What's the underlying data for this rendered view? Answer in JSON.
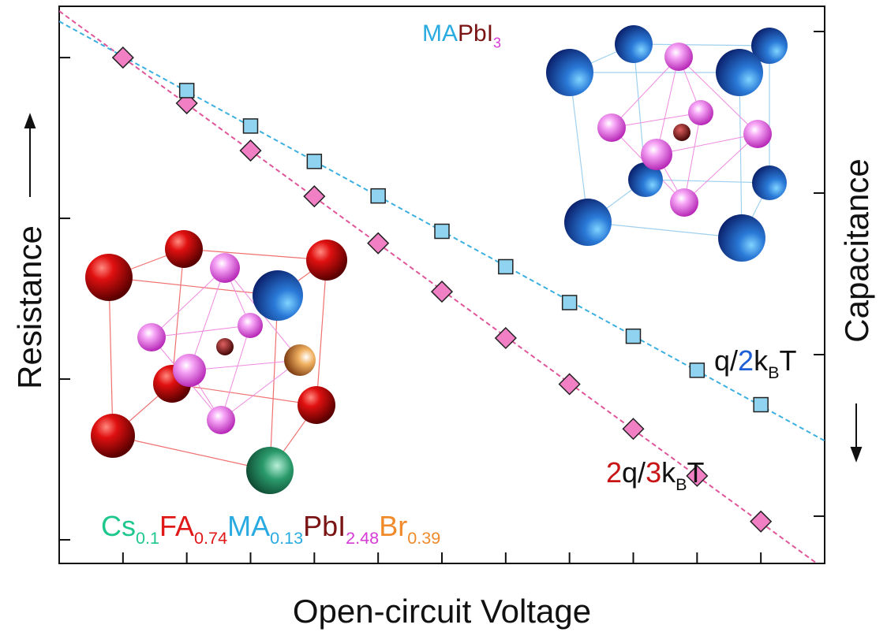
{
  "chart_data": {
    "type": "scatter",
    "xlabel": "Open-circuit Voltage",
    "ylabel": "Resistance",
    "y2label": "Capacitance",
    "xlim": [
      0,
      12
    ],
    "xticks": [
      1,
      2,
      3,
      4,
      5,
      6,
      7,
      8,
      9,
      10,
      11
    ],
    "ylog": true,
    "ylim": [
      0.713,
      2085
    ],
    "yticks": [
      1,
      10,
      100,
      1000
    ],
    "y2log": true,
    "y2lim": [
      0.51,
      1432
    ],
    "y2ticks": [
      1,
      10,
      100,
      1000
    ],
    "series": [
      {
        "name": "Resistance",
        "marker": "diamond",
        "color": "#f07fc4",
        "line_color": "#e0559a",
        "x": [
          1,
          2,
          3,
          4,
          5,
          6,
          7,
          8,
          9,
          10,
          11
        ],
        "values": [
          1000,
          520,
          264,
          137,
          70,
          35,
          18,
          9.3,
          4.9,
          2.5,
          1.3
        ]
      },
      {
        "name": "Capacitance",
        "marker": "square",
        "color": "#8fd3f0",
        "line_color": "#3bb0e0",
        "axis": "y2",
        "x": [
          2,
          3,
          4,
          5,
          6,
          7,
          8,
          9,
          10,
          11
        ],
        "values": [
          431,
          260,
          157,
          96,
          58,
          35,
          21,
          13,
          8.0,
          4.9
        ]
      }
    ],
    "annotations": [
      {
        "parts": [
          {
            "text": "MA",
            "color": "#29abe2"
          },
          {
            "text": "PbI",
            "color": "#7a1414"
          },
          {
            "text": "3",
            "color": "#d63ad6",
            "sub": true
          }
        ]
      },
      {
        "parts": [
          {
            "text": "q/",
            "color": "#111111"
          },
          {
            "text": "2",
            "color": "#1f5fd6"
          },
          {
            "text": "k",
            "color": "#111111"
          },
          {
            "text": "B",
            "color": "#111111",
            "sub": true
          },
          {
            "text": "T",
            "color": "#111111"
          }
        ]
      },
      {
        "parts": [
          {
            "text": "2",
            "color": "#c81414"
          },
          {
            "text": "q/",
            "color": "#111111"
          },
          {
            "text": "3",
            "color": "#c81414"
          },
          {
            "text": "k",
            "color": "#111111"
          },
          {
            "text": "B",
            "color": "#111111",
            "sub": true
          },
          {
            "text": "T",
            "color": "#111111"
          }
        ]
      },
      {
        "parts": [
          {
            "text": "Cs",
            "color": "#1ec88c"
          },
          {
            "text": "0.1",
            "color": "#1ec88c",
            "sub": true
          },
          {
            "text": "FA",
            "color": "#e01818"
          },
          {
            "text": "0.74",
            "color": "#e01818",
            "sub": true
          },
          {
            "text": "MA",
            "color": "#29abe2"
          },
          {
            "text": "0.13",
            "color": "#29abe2",
            "sub": true
          },
          {
            "text": "PbI",
            "color": "#7a1414"
          },
          {
            "text": "2.48",
            "color": "#d63ad6",
            "sub": true
          },
          {
            "text": "Br",
            "color": "#f08a2a"
          },
          {
            "text": "0.39",
            "color": "#f08a2a",
            "sub": true
          }
        ]
      }
    ]
  }
}
